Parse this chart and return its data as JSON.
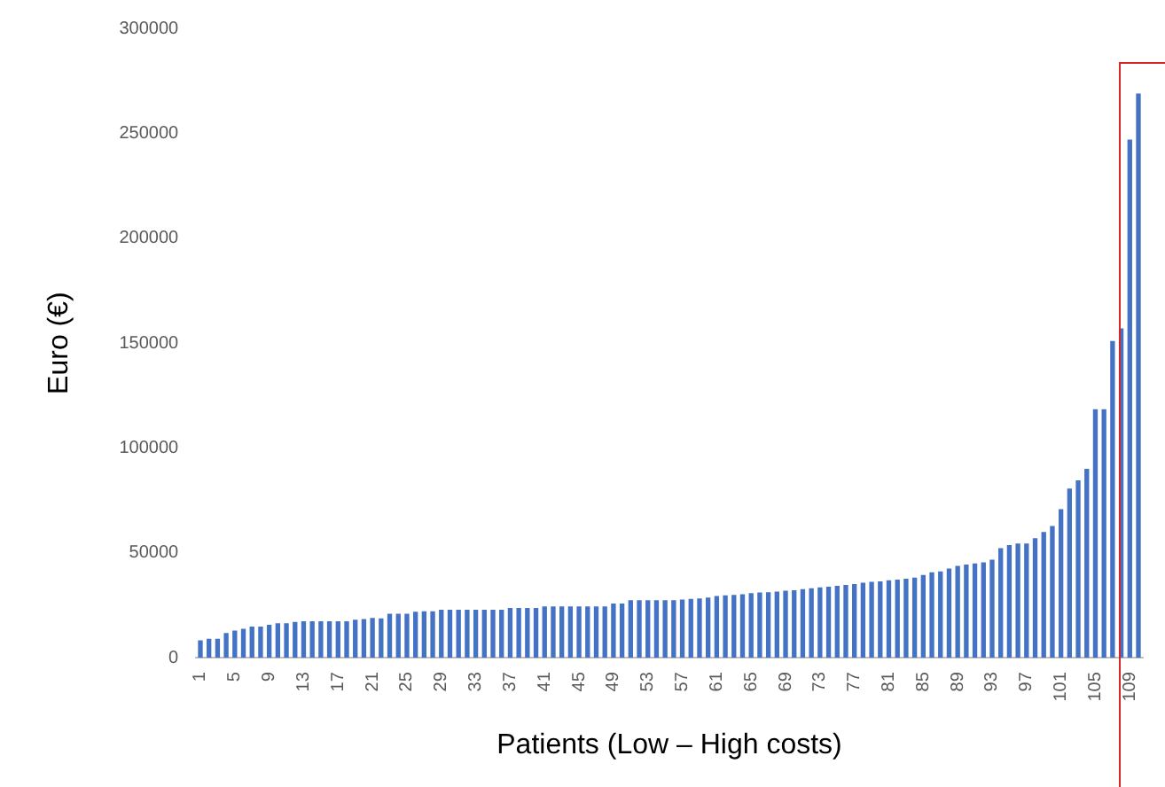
{
  "chart_data": {
    "type": "bar",
    "xlabel": "Patients (Low – High costs)",
    "ylabel": "Euro (€)",
    "categories": [
      "1",
      null,
      null,
      null,
      "5",
      null,
      null,
      null,
      "9",
      null,
      null,
      null,
      "13",
      null,
      null,
      null,
      "17",
      null,
      null,
      null,
      "21",
      null,
      null,
      null,
      "25",
      null,
      null,
      null,
      "29",
      null,
      null,
      null,
      "33",
      null,
      null,
      null,
      "37",
      null,
      null,
      null,
      "41",
      null,
      null,
      null,
      "45",
      null,
      null,
      null,
      "49",
      null,
      null,
      null,
      "53",
      null,
      null,
      null,
      "57",
      null,
      null,
      null,
      "61",
      null,
      null,
      null,
      "65",
      null,
      null,
      null,
      "69",
      null,
      null,
      null,
      "73",
      null,
      null,
      null,
      "77",
      null,
      null,
      null,
      "81",
      null,
      null,
      null,
      "85",
      null,
      null,
      null,
      "89",
      null,
      null,
      null,
      "93",
      null,
      null,
      null,
      "97",
      null,
      null,
      null,
      "101",
      null,
      null,
      null,
      "105",
      null,
      null,
      null,
      "109",
      null
    ],
    "values": [
      8300,
      9100,
      9100,
      11800,
      13000,
      13800,
      14900,
      14900,
      15700,
      16500,
      16500,
      17100,
      17400,
      17400,
      17400,
      17400,
      17400,
      17400,
      18200,
      18500,
      19000,
      18800,
      21000,
      21000,
      21000,
      22000,
      22200,
      22200,
      22900,
      22900,
      22900,
      22900,
      22900,
      22900,
      22900,
      22900,
      23700,
      23700,
      23700,
      23700,
      24500,
      24500,
      24500,
      24500,
      24500,
      24500,
      24500,
      24500,
      25900,
      25900,
      27500,
      27500,
      27500,
      27500,
      27500,
      27500,
      27800,
      28100,
      28300,
      28700,
      29500,
      29800,
      30000,
      30300,
      30800,
      31100,
      31300,
      31600,
      32000,
      32200,
      32700,
      33200,
      33600,
      33900,
      34300,
      34700,
      35200,
      35800,
      36200,
      36400,
      36900,
      37300,
      37700,
      38200,
      39500,
      40800,
      41200,
      42500,
      43800,
      44500,
      45000,
      45500,
      46800,
      52300,
      53700,
      54500,
      54500,
      57000,
      60000,
      62800,
      70800,
      80700,
      84600,
      90100,
      118500,
      118500,
      151000,
      157000,
      247000,
      269000
    ],
    "color": "#4472c4",
    "ylim": [
      0,
      300000
    ],
    "yticks": [
      0,
      50000,
      100000,
      150000,
      200000,
      250000,
      300000
    ],
    "grid": false,
    "legend": false
  }
}
